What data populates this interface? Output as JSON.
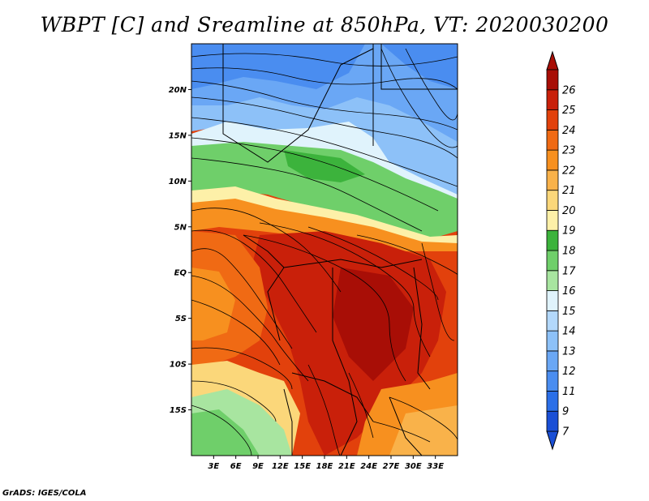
{
  "title": "WBPT [C] and Sreamline at 850hPa, VT: 2020030200",
  "footer": "GrADS: IGES/COLA",
  "map": {
    "lon_range": [
      0,
      36
    ],
    "lat_range": [
      -20,
      25
    ],
    "lat_ticks": [
      {
        "value": 20,
        "label": "20N"
      },
      {
        "value": 15,
        "label": "15N"
      },
      {
        "value": 10,
        "label": "10N"
      },
      {
        "value": 5,
        "label": "5N"
      },
      {
        "value": 0,
        "label": "EQ"
      },
      {
        "value": -5,
        "label": "5S"
      },
      {
        "value": -10,
        "label": "10S"
      },
      {
        "value": -15,
        "label": "15S"
      }
    ],
    "lon_ticks": [
      {
        "value": 3,
        "label": "3E"
      },
      {
        "value": 6,
        "label": "6E"
      },
      {
        "value": 9,
        "label": "9E"
      },
      {
        "value": 12,
        "label": "12E"
      },
      {
        "value": 15,
        "label": "15E"
      },
      {
        "value": 18,
        "label": "18E"
      },
      {
        "value": 21,
        "label": "21E"
      },
      {
        "value": 24,
        "label": "24E"
      },
      {
        "value": 27,
        "label": "27E"
      },
      {
        "value": 30,
        "label": "30E"
      },
      {
        "value": 33,
        "label": "33E"
      }
    ]
  },
  "colorbar": {
    "levels": [
      "7",
      "9",
      "11",
      "12",
      "13",
      "14",
      "15",
      "16",
      "17",
      "18",
      "19",
      "20",
      "21",
      "22",
      "23",
      "24",
      "25",
      "26"
    ],
    "colors": [
      "#1a4fd6",
      "#2b6fe8",
      "#4a8df0",
      "#6aa7f5",
      "#8dc1f8",
      "#b3d8fb",
      "#e0f3fc",
      "#a8e5a0",
      "#6fcf6a",
      "#3cb33c",
      "#fdf0a8",
      "#fbd77a",
      "#f9b24a",
      "#f7901f",
      "#f06a14",
      "#e2410c",
      "#c9200a",
      "#a80e06"
    ]
  }
}
